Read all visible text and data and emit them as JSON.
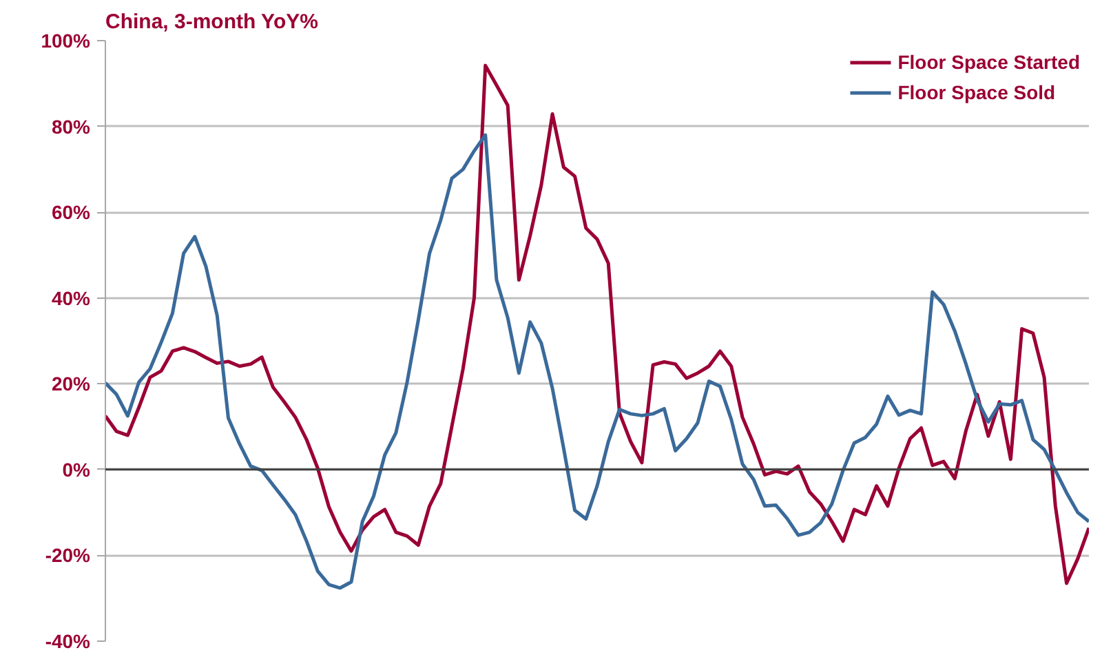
{
  "chart_data": {
    "type": "line",
    "title": "China, 3-month YoY%",
    "categories": [
      null,
      null,
      null,
      null,
      null,
      null,
      null,
      null,
      null,
      null,
      null,
      null,
      null,
      null,
      null,
      null,
      null,
      null,
      null,
      null,
      null,
      null,
      null,
      null,
      null,
      null,
      null,
      null,
      null,
      null,
      null,
      null,
      null,
      null,
      null,
      null,
      null,
      null,
      null,
      null,
      null,
      null,
      null,
      null,
      null,
      null,
      null,
      null,
      null,
      null,
      null,
      null,
      null,
      null,
      null,
      null,
      null,
      null,
      null,
      null,
      null,
      null,
      null,
      null,
      null,
      null,
      null,
      null,
      null,
      null,
      null,
      null,
      null,
      null,
      null,
      null,
      null,
      null,
      null,
      null,
      null,
      null,
      null,
      null,
      null,
      null,
      null,
      null,
      null
    ],
    "series": [
      {
        "name": "Floor Space Started",
        "color": "#9b0034",
        "values": [
          12.5,
          8.9,
          8,
          14.5,
          21.5,
          23,
          27.6,
          28.4,
          27.5,
          26.1,
          24.8,
          25.2,
          24.1,
          24.6,
          26.2,
          19.2,
          15.8,
          12.2,
          7,
          0.3,
          -8.7,
          -14.6,
          -19,
          -14.1,
          -11,
          -9.3,
          -14.6,
          -15.5,
          -17.6,
          -8.5,
          -3.3,
          10.1,
          23.5,
          40,
          94.2,
          89.6,
          84.9,
          44.2,
          54.5,
          66.3,
          82.9,
          70.5,
          68.4,
          56.3,
          53.7,
          48.1,
          13.2,
          6.5,
          1.6,
          24.4,
          25.1,
          24.6,
          21.3,
          22.5,
          24.1,
          27.6,
          24.1,
          12.2,
          6,
          -1.2,
          -0.4,
          -1,
          0.8,
          -5.2,
          -8,
          -12.1,
          -16.7,
          -9.3,
          -10.5,
          -3.8,
          -8.5,
          0.3,
          7.2,
          9.7,
          1,
          1.9,
          -2.1,
          9.1,
          17.5,
          7.8,
          15.8,
          2.4,
          32.8,
          31.8,
          21.5,
          -8.5,
          -26.5,
          -20.8,
          -13.6
        ]
      },
      {
        "name": "Floor Space Sold",
        "color": "#3a6a9a",
        "values": [
          20.2,
          17.5,
          12.5,
          20.4,
          23.5,
          29.7,
          36.4,
          50.4,
          54.3,
          47.3,
          35.9,
          12,
          6,
          0.8,
          -0.2,
          -3.6,
          -6.9,
          -10.5,
          -16.7,
          -23.7,
          -26.8,
          -27.6,
          -26.2,
          -12.1,
          -6.2,
          3.4,
          8.6,
          20.4,
          34.9,
          50.4,
          58.1,
          67.9,
          70,
          74.3,
          78,
          44.2,
          35.4,
          22.5,
          34.4,
          29.5,
          18.9,
          5,
          -9.5,
          -11.5,
          -3.8,
          6.5,
          14,
          13,
          12.6,
          13,
          14.2,
          4.4,
          7.2,
          10.9,
          20.6,
          19.4,
          11.7,
          1.3,
          -2.3,
          -8.5,
          -8.3,
          -11.4,
          -15.3,
          -14.6,
          -12.4,
          -8,
          -0.2,
          6.2,
          7.5,
          10.6,
          17.1,
          12.7,
          13.8,
          13,
          41.4,
          38.5,
          32.3,
          24.6,
          16.3,
          11.1,
          15.3,
          15.1,
          16.1,
          7,
          4.7,
          -0.2,
          -5.4,
          -10,
          -12.1
        ]
      }
    ],
    "ylim": [
      -40,
      100
    ],
    "yticks": [
      {
        "value": -40,
        "label": "-40%"
      },
      {
        "value": -20,
        "label": "-20%"
      },
      {
        "value": 0,
        "label": "0%"
      },
      {
        "value": 20,
        "label": "20%"
      },
      {
        "value": 40,
        "label": "40%"
      },
      {
        "value": 60,
        "label": "60%"
      },
      {
        "value": 80,
        "label": "80%"
      },
      {
        "value": 100,
        "label": "100%"
      }
    ],
    "grid": "y",
    "legend": "top right",
    "tick_labels": "y",
    "ref_lines": [
      {
        "axis": "y",
        "value": 0,
        "color": "#404040"
      }
    ]
  }
}
